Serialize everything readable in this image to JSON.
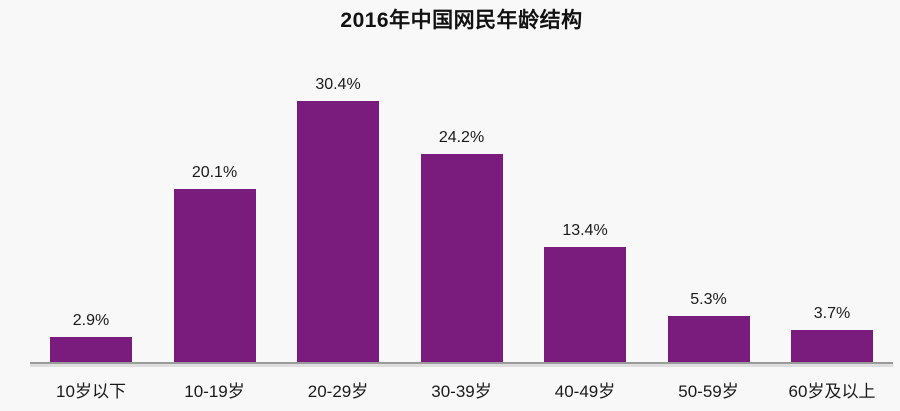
{
  "chart_data": {
    "type": "bar",
    "title": "2016年中国网民年龄结构",
    "categories": [
      "10岁以下",
      "10-19岁",
      "20-29岁",
      "30-39岁",
      "40-49岁",
      "50-59岁",
      "60岁及以上"
    ],
    "values": [
      2.9,
      20.1,
      30.4,
      24.2,
      13.4,
      5.3,
      3.7
    ],
    "value_labels": [
      "2.9%",
      "20.1%",
      "30.4%",
      "24.2%",
      "13.4%",
      "5.3%",
      "3.7%"
    ],
    "xlabel": "",
    "ylabel": "",
    "ylim": [
      0,
      32
    ],
    "grid": false,
    "legend": "none",
    "bar_color": "#7a1b7e",
    "background_color": "#f8f8f8",
    "axis_color": "#9a9a9a",
    "text_color": "#1a1a1a"
  }
}
